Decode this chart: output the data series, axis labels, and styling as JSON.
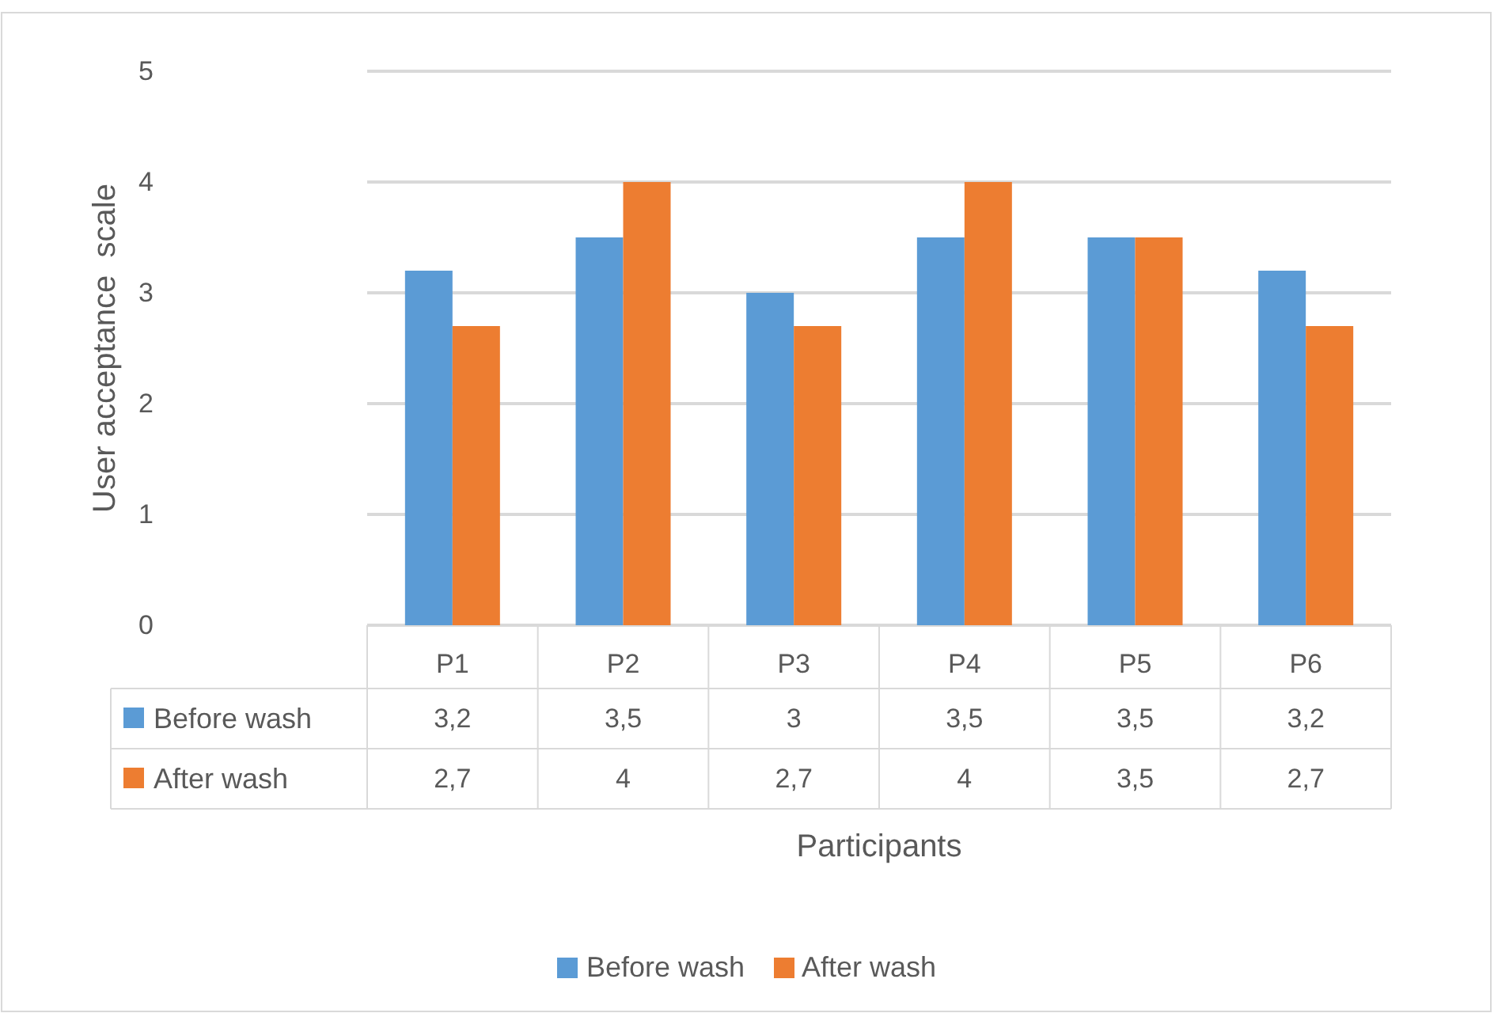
{
  "chart_data": {
    "type": "bar",
    "xlabel": "Participants",
    "ylabel": "User acceptance  scale",
    "categories": [
      "P1",
      "P2",
      "P3",
      "P4",
      "P5",
      "P6"
    ],
    "series": [
      {
        "name": "Before wash",
        "color": "#5b9bd5",
        "values": [
          3.2,
          3.5,
          3,
          3.5,
          3.5,
          3.2
        ],
        "value_labels": [
          "3,2",
          "3,5",
          "3",
          "3,5",
          "3,5",
          "3,2"
        ]
      },
      {
        "name": "After wash",
        "color": "#ed7d31",
        "values": [
          2.7,
          4,
          2.7,
          4,
          3.5,
          2.7
        ],
        "value_labels": [
          "2,7",
          "4",
          "2,7",
          "4",
          "3,5",
          "2,7"
        ]
      }
    ],
    "ylim": [
      0,
      5
    ],
    "yticks": [
      0,
      1,
      2,
      3,
      4,
      5
    ],
    "grid": "y",
    "legend": "bottom"
  }
}
